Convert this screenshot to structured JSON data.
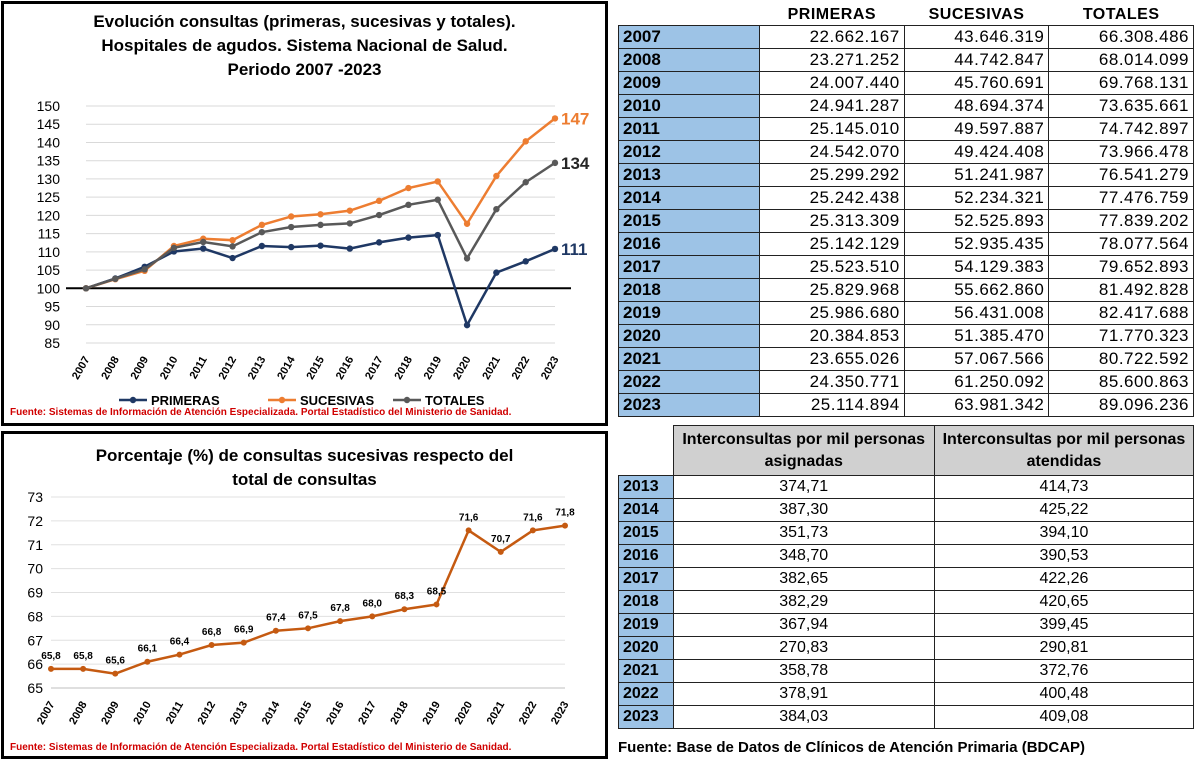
{
  "chart_data": [
    {
      "type": "line",
      "title": "Evolución consultas (primeras, sucesivas y totales). Hospitales de agudos. Sistema Nacional de Salud. Periodo 2007 -2023",
      "title_lines": [
        "Evolución consultas (primeras, sucesivas y totales).",
        "Hospitales de agudos. Sistema Nacional de Salud.",
        "Periodo 2007 -2023"
      ],
      "x": [
        "2007",
        "2008",
        "2009",
        "2010",
        "2011",
        "2012",
        "2013",
        "2014",
        "2015",
        "2016",
        "2017",
        "2018",
        "2019",
        "2020",
        "2021",
        "2022",
        "2023"
      ],
      "yticks": [
        "150",
        "145",
        "140",
        "135",
        "130",
        "125",
        "120",
        "115",
        "110",
        "105",
        "100",
        "95",
        "90",
        "85"
      ],
      "ylim": [
        85,
        150
      ],
      "reference_line": 100,
      "series": [
        {
          "name": "PRIMERAS",
          "color": "#1f3864",
          "end_label": "111",
          "values": [
            100,
            102.7,
            105.9,
            110.1,
            110.9,
            108.3,
            111.6,
            111.3,
            111.7,
            110.9,
            112.6,
            113.9,
            114.6,
            89.9,
            104.3,
            107.4,
            110.8
          ]
        },
        {
          "name": "SUCESIVAS",
          "color": "#ed7d31",
          "end_label": "147",
          "values": [
            100,
            102.5,
            104.8,
            111.6,
            113.6,
            113.2,
            117.4,
            119.7,
            120.3,
            121.3,
            124.0,
            127.5,
            129.3,
            117.7,
            130.8,
            140.3,
            146.6
          ]
        },
        {
          "name": "TOTALES",
          "color": "#595959",
          "end_label": "134",
          "values": [
            100,
            102.6,
            105.2,
            111.1,
            112.7,
            111.5,
            115.4,
            116.8,
            117.4,
            117.8,
            120.1,
            122.9,
            124.3,
            108.2,
            121.7,
            129.1,
            134.4
          ]
        }
      ],
      "legend": "bottom",
      "source": "Fuente: Sistemas de Información de Atención Especializada. Portal Estadístico del Ministerio de Sanidad."
    },
    {
      "type": "line",
      "title": "Porcentaje (%) de consultas sucesivas respecto del total de consultas",
      "title_lines": [
        "Porcentaje (%) de consultas sucesivas respecto del",
        "total de consultas"
      ],
      "x": [
        "2007",
        "2008",
        "2009",
        "2010",
        "2011",
        "2012",
        "2013",
        "2014",
        "2015",
        "2016",
        "2017",
        "2018",
        "2019",
        "2020",
        "2021",
        "2022",
        "2023"
      ],
      "yticks": [
        "73",
        "72",
        "71",
        "70",
        "69",
        "68",
        "67",
        "66",
        "65"
      ],
      "ylim": [
        65,
        73
      ],
      "series": [
        {
          "name": "",
          "color": "#c55a11",
          "values": [
            65.8,
            65.8,
            65.6,
            66.1,
            66.4,
            66.8,
            66.9,
            67.4,
            67.5,
            67.8,
            68.0,
            68.3,
            68.5,
            71.6,
            70.7,
            71.6,
            71.8
          ],
          "labels": [
            "65,8",
            "65,8",
            "65,6",
            "66,1",
            "66,4",
            "66,8",
            "66,9",
            "67,4",
            "67,5",
            "67,8",
            "68,0",
            "68,3",
            "68,5",
            "71,6",
            "70,7",
            "71,6",
            "71,8"
          ]
        }
      ],
      "source": "Fuente: Sistemas de Información de Atención Especializada. Portal Estadístico del Ministerio de Sanidad."
    },
    {
      "type": "table",
      "headers": [
        "",
        "PRIMERAS",
        "SUCESIVAS",
        "TOTALES"
      ],
      "rows": [
        [
          "2007",
          "22.662.167",
          "43.646.319",
          "66.308.486"
        ],
        [
          "2008",
          "23.271.252",
          "44.742.847",
          "68.014.099"
        ],
        [
          "2009",
          "24.007.440",
          "45.760.691",
          "69.768.131"
        ],
        [
          "2010",
          "24.941.287",
          "48.694.374",
          "73.635.661"
        ],
        [
          "2011",
          "25.145.010",
          "49.597.887",
          "74.742.897"
        ],
        [
          "2012",
          "24.542.070",
          "49.424.408",
          "73.966.478"
        ],
        [
          "2013",
          "25.299.292",
          "51.241.987",
          "76.541.279"
        ],
        [
          "2014",
          "25.242.438",
          "52.234.321",
          "77.476.759"
        ],
        [
          "2015",
          "25.313.309",
          "52.525.893",
          "77.839.202"
        ],
        [
          "2016",
          "25.142.129",
          "52.935.435",
          "78.077.564"
        ],
        [
          "2017",
          "25.523.510",
          "54.129.383",
          "79.652.893"
        ],
        [
          "2018",
          "25.829.968",
          "55.662.860",
          "81.492.828"
        ],
        [
          "2019",
          "25.986.680",
          "56.431.008",
          "82.417.688"
        ],
        [
          "2020",
          "20.384.853",
          "51.385.470",
          "71.770.323"
        ],
        [
          "2021",
          "23.655.026",
          "57.067.566",
          "80.722.592"
        ],
        [
          "2022",
          "24.350.771",
          "61.250.092",
          "85.600.863"
        ],
        [
          "2023",
          "25.114.894",
          "63.981.342",
          "89.096.236"
        ]
      ]
    },
    {
      "type": "table",
      "headers": [
        "",
        "Interconsultas por mil personas asignadas",
        "Interconsultas por mil personas atendidas"
      ],
      "rows": [
        [
          "2013",
          "374,71",
          "414,73"
        ],
        [
          "2014",
          "387,30",
          "425,22"
        ],
        [
          "2015",
          "351,73",
          "394,10"
        ],
        [
          "2016",
          "348,70",
          "390,53"
        ],
        [
          "2017",
          "382,65",
          "422,26"
        ],
        [
          "2018",
          "382,29",
          "420,65"
        ],
        [
          "2019",
          "367,94",
          "399,45"
        ],
        [
          "2020",
          "270,83",
          "290,81"
        ],
        [
          "2021",
          "358,78",
          "372,76"
        ],
        [
          "2022",
          "378,91",
          "400,48"
        ],
        [
          "2023",
          "384,03",
          "409,08"
        ]
      ],
      "source": "Fuente: Base de Datos de Clínicos de Atención Primaria (BDCAP)"
    }
  ]
}
